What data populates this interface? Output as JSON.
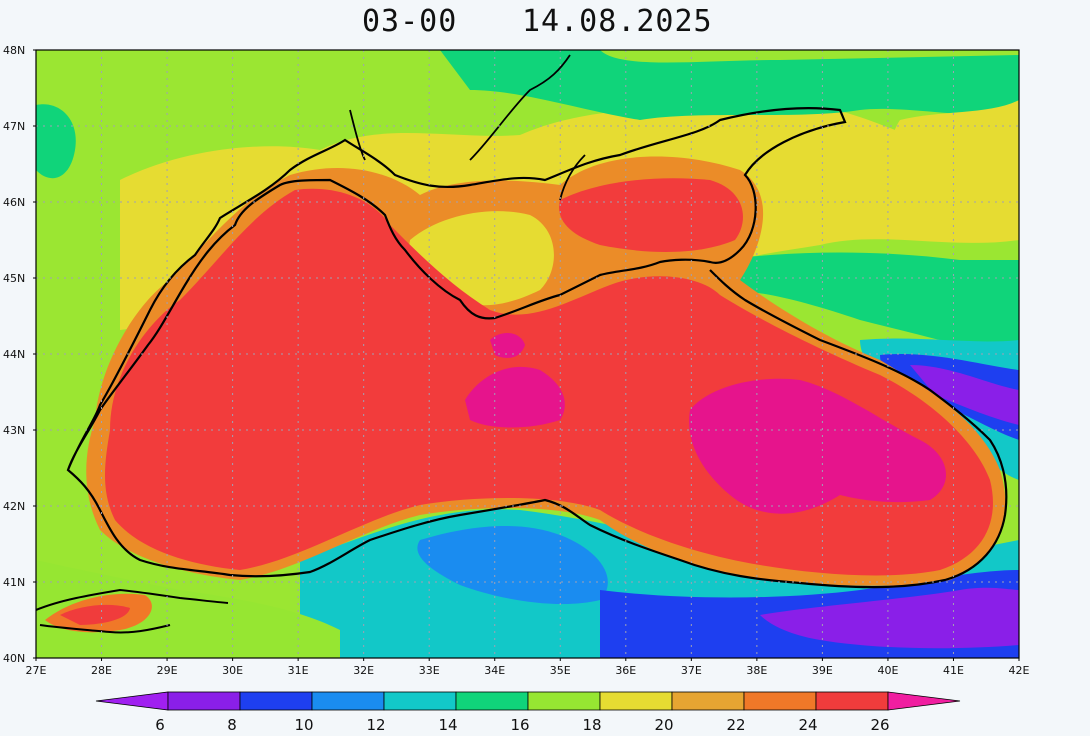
{
  "title": {
    "hour": "03-00",
    "date": "14.08.2025"
  },
  "axes": {
    "lat_labels": [
      "48N",
      "47N",
      "46N",
      "45N",
      "44N",
      "43N",
      "42N",
      "41N",
      "40N"
    ],
    "lon_labels": [
      "27E",
      "28E",
      "29E",
      "30E",
      "31E",
      "32E",
      "33E",
      "34E",
      "35E",
      "36E",
      "37E",
      "38E",
      "39E",
      "40E",
      "41E",
      "42E"
    ],
    "lon_range": [
      27,
      42
    ],
    "lat_range": [
      40,
      48
    ],
    "grid": true
  },
  "colorbar": {
    "labels": [
      "6",
      "8",
      "10",
      "12",
      "14",
      "16",
      "18",
      "20",
      "22",
      "24",
      "26"
    ],
    "colors": [
      "#a020f0",
      "#8a1fe8",
      "#1e3ff0",
      "#1a8cf0",
      "#12c8c8",
      "#10d47a",
      "#96e632",
      "#e6dc32",
      "#e6a532",
      "#f07828",
      "#f03c3c",
      "#f01ea0"
    ]
  },
  "colors": {
    "sea_warm": "#f23c3c",
    "sea_hot": "#e6148c",
    "land_green": "#9be632",
    "land_yellow": "#e6dc32",
    "coast_orange": "#eb8c28",
    "cool_blue": "#1e64f0",
    "purple": "#8c1edc",
    "teal": "#12c8aa"
  }
}
